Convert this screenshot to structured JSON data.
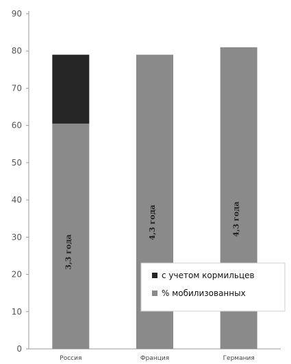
{
  "chart_data": {
    "type": "bar",
    "stacked": true,
    "categories": [
      "Россия",
      "Франция",
      "Германия"
    ],
    "series": [
      {
        "name": "% мобилизованных",
        "values": [
          60.5,
          79,
          81
        ],
        "color": "#8a8a8a"
      },
      {
        "name": "с учетом кормильцев",
        "values": [
          18.5,
          0,
          0
        ],
        "color": "#262626"
      }
    ],
    "bar_labels": [
      "3,3 года",
      "4,3 года",
      "4,3 года"
    ],
    "ylim": [
      0,
      90
    ],
    "yticks": [
      0,
      10,
      20,
      30,
      40,
      50,
      60,
      70,
      80,
      90
    ],
    "legend_position": "bottom-right",
    "legend_order": [
      1,
      0
    ],
    "grid": false
  }
}
